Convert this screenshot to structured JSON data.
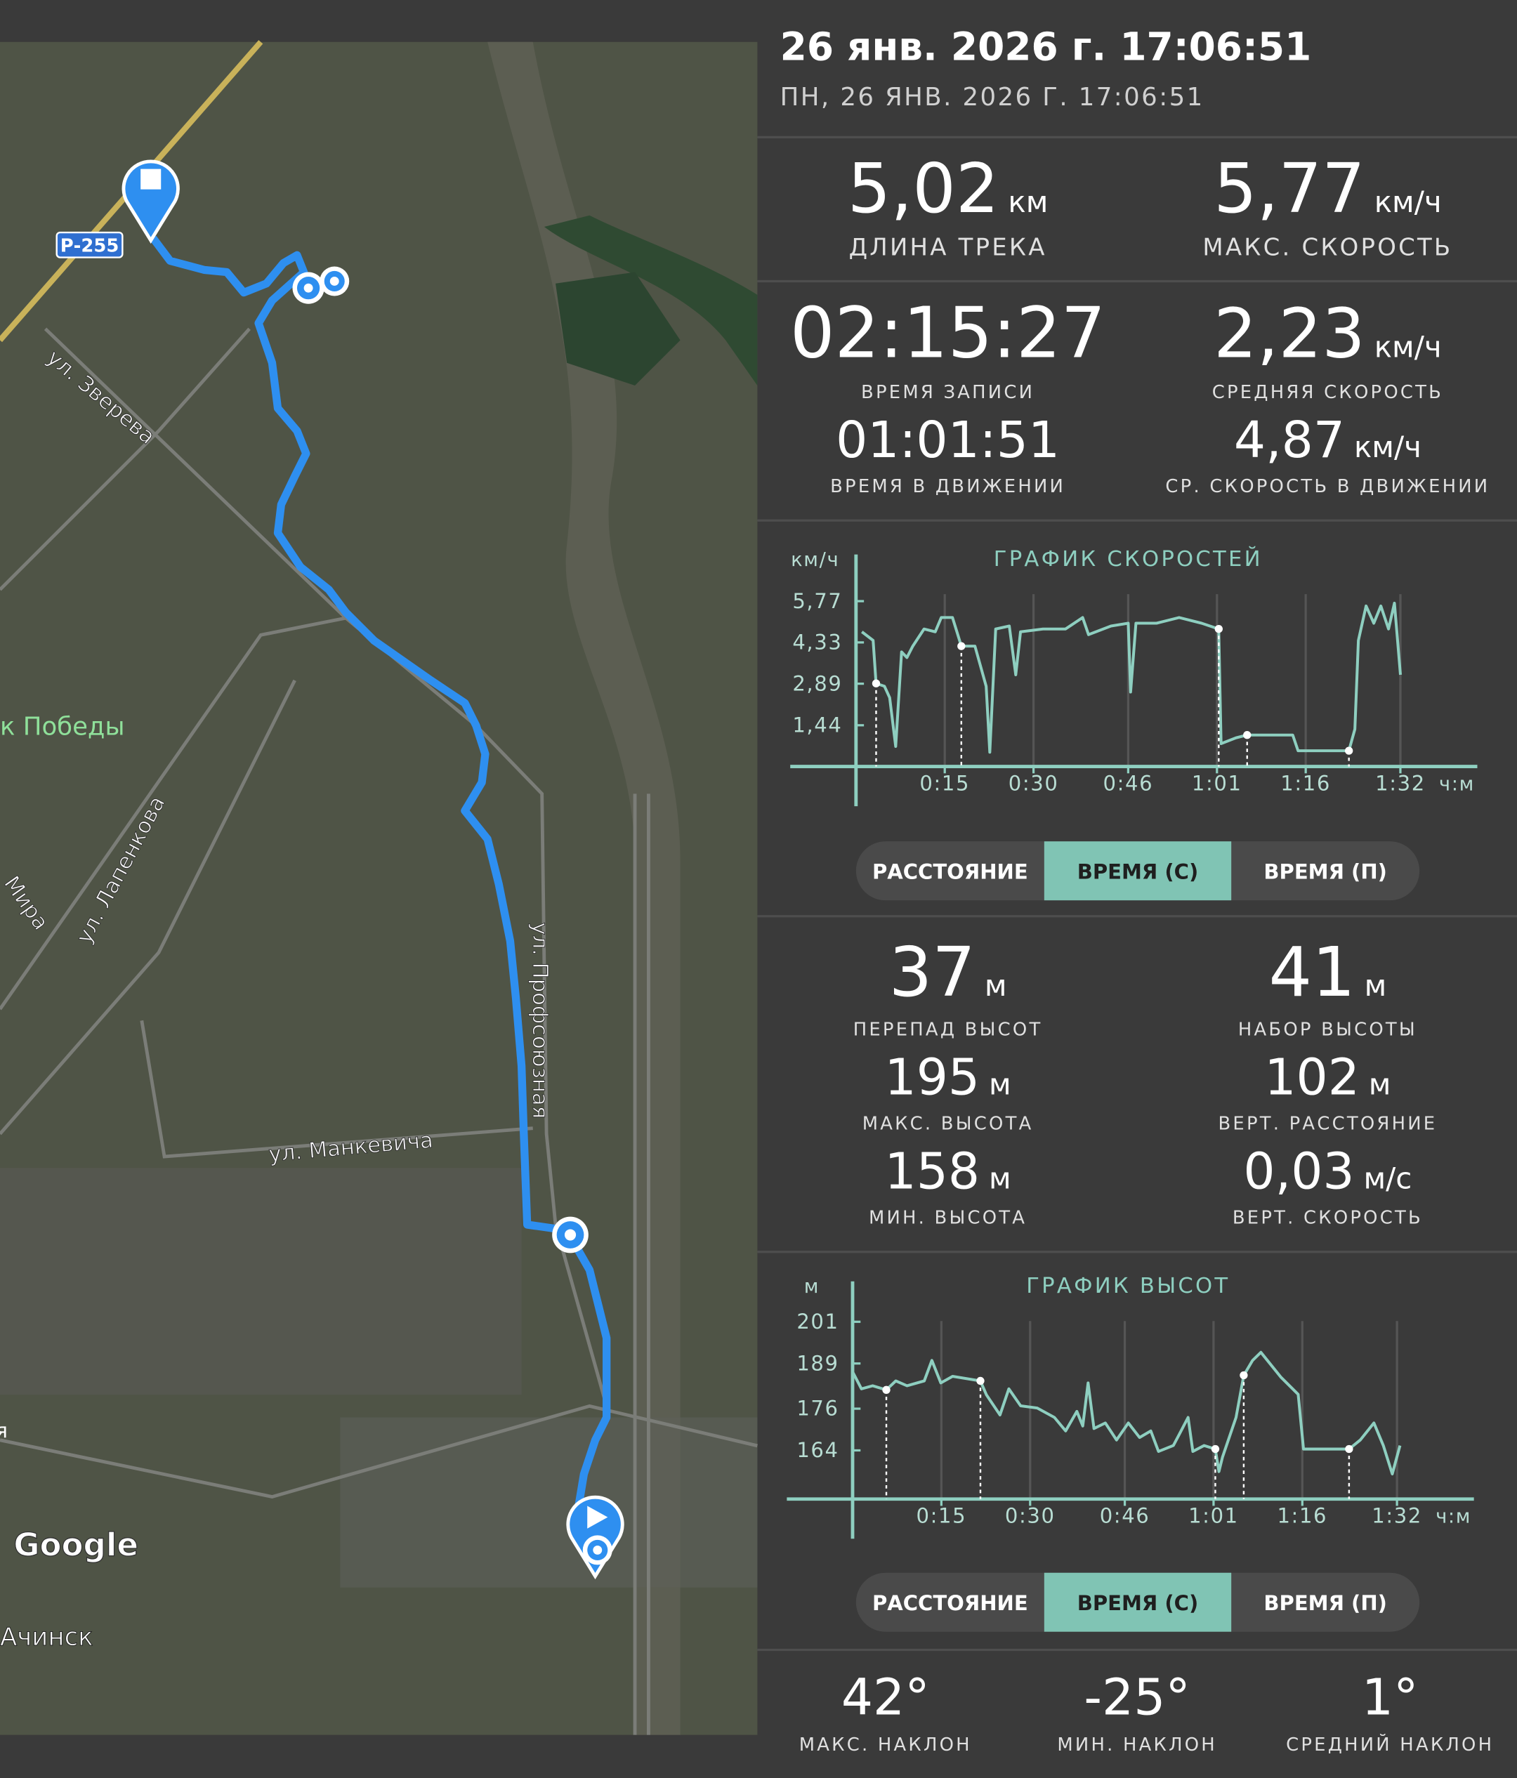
{
  "header": {
    "title": "26 янв. 2026 г. 17:06:51",
    "subtitle": "ПН, 26 ЯНВ. 2026 Г. 17:06:51"
  },
  "speed_stats": [
    {
      "value": "5,02",
      "unit": "км",
      "label": "ДЛИНА ТРЕКА"
    },
    {
      "value": "5,77",
      "unit": "км/ч",
      "label": "МАКС. СКОРОСТЬ"
    },
    {
      "value": "02:15:27",
      "label": "ВРЕМЯ ЗАПИСИ"
    },
    {
      "value": "2,23",
      "unit": "км/ч",
      "label": "СРЕДНЯЯ СКОРОСТЬ"
    },
    {
      "value": "01:01:51",
      "label": "ВРЕМЯ В ДВИЖЕНИИ"
    },
    {
      "value": "4,87",
      "unit": "км/ч",
      "label": "СР. СКОРОСТЬ В ДВИЖЕНИИ"
    }
  ],
  "elevation_stats": [
    {
      "value": "37",
      "unit": "м",
      "label": "ПЕРЕПАД ВЫСОТ"
    },
    {
      "value": "41",
      "unit": "м",
      "label": "НАБОР ВЫСОТЫ"
    },
    {
      "value": "195",
      "unit": "м",
      "label": "МАКС. ВЫСОТА"
    },
    {
      "value": "102",
      "unit": "м",
      "label": "ВЕРТ. РАССТОЯНИЕ"
    },
    {
      "value": "158",
      "unit": "м",
      "label": "МИН. ВЫСОТА"
    },
    {
      "value": "0,03",
      "unit": "м/с",
      "label": "ВЕРТ. СКОРОСТЬ"
    }
  ],
  "slope_stats": [
    {
      "value": "42°",
      "label": "МАКС. НАКЛОН"
    },
    {
      "value": "-25°",
      "label": "МИН. НАКЛОН"
    },
    {
      "value": "1°",
      "label": "СРЕДНИЙ НАКЛОН"
    }
  ],
  "chart_data": [
    {
      "type": "line",
      "title": "ГРАФИК СКОРОСТЕЙ",
      "y_unit": "км/ч",
      "x_unit": "ч:м",
      "color": "#8ecfc0",
      "grid": true,
      "x": [
        1,
        2.9,
        3.4,
        4.8,
        5.7,
        6.7,
        7.7,
        8.6,
        9.6,
        11.5,
        13.4,
        14.4,
        16.3,
        17.8,
        20.1,
        22.0,
        22.6,
        23.6,
        25.9,
        27.0,
        27.8,
        31.6,
        35.4,
        38.3,
        39.3,
        43.1,
        46.0,
        46.4,
        47.3,
        50.8,
        54.6,
        58.4,
        61.3,
        61.7,
        64.2,
        66.1,
        73.8,
        74.7,
        83.3,
        84.3,
        84.9,
        86.2,
        87.5,
        88.7,
        90.0,
        91.0,
        92.0
      ],
      "values": [
        4.7,
        4.4,
        2.9,
        2.8,
        2.4,
        0.7,
        4.0,
        3.8,
        4.2,
        4.8,
        4.7,
        5.2,
        5.2,
        4.2,
        4.2,
        2.8,
        0.5,
        4.8,
        4.9,
        3.2,
        4.7,
        4.8,
        4.8,
        5.2,
        4.6,
        4.9,
        5.0,
        2.6,
        5.0,
        5.0,
        5.2,
        5.0,
        4.8,
        0.8,
        1.0,
        1.1,
        1.1,
        0.55,
        0.55,
        1.3,
        4.4,
        5.6,
        5.0,
        5.6,
        4.8,
        5.7,
        3.2
      ],
      "markers": {
        "x": [
          3.4,
          17.8,
          61.3,
          66.1,
          83.3
        ],
        "values": [
          2.9,
          4.2,
          4.8,
          1.1,
          0.55
        ]
      },
      "xlim": [
        0,
        105
      ],
      "ylim": [
        0,
        7.2
      ],
      "xticks": [
        {
          "value": 15,
          "label": "0:15"
        },
        {
          "value": 30,
          "label": "0:30"
        },
        {
          "value": 46,
          "label": "0:46"
        },
        {
          "value": 61,
          "label": "1:01"
        },
        {
          "value": 76,
          "label": "1:16"
        },
        {
          "value": 92,
          "label": "1:32"
        }
      ],
      "yticks": [
        {
          "value": 1.44,
          "label": "1,44"
        },
        {
          "value": 2.89,
          "label": "2,89"
        },
        {
          "value": 4.33,
          "label": "4,33"
        },
        {
          "value": 5.77,
          "label": "5,77"
        }
      ],
      "tabs": [
        "РАССТОЯНИЕ",
        "ВРЕМЯ (С)",
        "ВРЕМЯ (П)"
      ],
      "selected_tab": 1
    },
    {
      "type": "line",
      "title": "ГРАФИК ВЫСОТ",
      "y_unit": "м",
      "x_unit": "ч:м",
      "color": "#8ecfc0",
      "grid": true,
      "x": [
        0,
        1.5,
        3.4,
        5.7,
        7.3,
        9.2,
        12.1,
        13.4,
        14.9,
        16.9,
        21.6,
        22.6,
        24.9,
        26.4,
        28.4,
        31.2,
        34.1,
        36.0,
        37.9,
        38.9,
        39.8,
        40.8,
        42.7,
        44.6,
        46.6,
        48.5,
        50.4,
        51.7,
        54.2,
        55.2,
        56.7,
        57.5,
        59.4,
        61.3,
        61.9,
        62.5,
        64.8,
        66.1,
        67.6,
        69.0,
        72.4,
        75.3,
        76.2,
        81.0,
        83.9,
        85.8,
        88.1,
        89.7,
        91.2,
        92.5
      ],
      "values": [
        186.6,
        181.7,
        182.6,
        181.4,
        184,
        182.6,
        184,
        189.9,
        183.4,
        185.3,
        184,
        180,
        174.2,
        181.7,
        176.8,
        176.2,
        173.5,
        169.6,
        175.2,
        171,
        183.4,
        170.3,
        171.9,
        167,
        171.9,
        167.7,
        169.6,
        163.7,
        165.4,
        168.6,
        173.5,
        163.7,
        165.4,
        164.4,
        157.9,
        162,
        173.5,
        185.6,
        189.9,
        192.2,
        185,
        180.1,
        164.4,
        164.4,
        164.4,
        167,
        171.9,
        165.4,
        157.2,
        165.4
      ],
      "markers": {
        "x": [
          5.7,
          21.6,
          61.3,
          66.1,
          83.9
        ],
        "values": [
          181.4,
          184,
          164.4,
          185.6,
          164.4
        ]
      },
      "xlim": [
        0,
        105
      ],
      "ylim": [
        150,
        211
      ],
      "xticks": [
        {
          "value": 15,
          "label": "0:15"
        },
        {
          "value": 30,
          "label": "0:30"
        },
        {
          "value": 46,
          "label": "0:46"
        },
        {
          "value": 61,
          "label": "1:01"
        },
        {
          "value": 76,
          "label": "1:16"
        },
        {
          "value": 92,
          "label": "1:32"
        }
      ],
      "yticks": [
        164,
        176,
        189,
        201
      ],
      "tabs": [
        "РАССТОЯНИЕ",
        "ВРЕМЯ (С)",
        "ВРЕМЯ (П)"
      ],
      "selected_tab": 1
    }
  ],
  "map": {
    "road_shield": "Р-255",
    "streets": [
      "ул. Зверева",
      "ул. Лапенкова",
      "Мира",
      "ул. Профсоюзная",
      "ул. Манкевича"
    ],
    "park": "к Победы",
    "city": "Ачинск",
    "edge_label": "я",
    "attribution": "Google"
  }
}
